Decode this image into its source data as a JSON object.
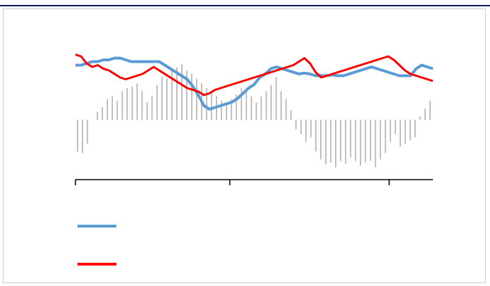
{
  "chart_data": {
    "type": "line",
    "title": "",
    "xlabel": "",
    "ylabel": "",
    "x_ticks": [
      "",
      "",
      ""
    ],
    "ylim": [
      -1,
      1
    ],
    "legend_placement": "bottom-left",
    "grid": false,
    "series": [
      {
        "color": "#5b9bd5",
        "points": [
          [
            0,
            0.62
          ],
          [
            1,
            0.62
          ],
          [
            2,
            0.64
          ],
          [
            3,
            0.66
          ],
          [
            4,
            0.66
          ],
          [
            5,
            0.68
          ],
          [
            6,
            0.68
          ],
          [
            7,
            0.7
          ],
          [
            8,
            0.7
          ],
          [
            9,
            0.68
          ],
          [
            10,
            0.66
          ],
          [
            11,
            0.66
          ],
          [
            12,
            0.66
          ],
          [
            13,
            0.66
          ],
          [
            14,
            0.66
          ],
          [
            15,
            0.66
          ],
          [
            16,
            0.62
          ],
          [
            17,
            0.58
          ],
          [
            18,
            0.54
          ],
          [
            19,
            0.5
          ],
          [
            20,
            0.46
          ],
          [
            21,
            0.38
          ],
          [
            22,
            0.28
          ],
          [
            23,
            0.16
          ],
          [
            24,
            0.12
          ],
          [
            25,
            0.14
          ],
          [
            26,
            0.16
          ],
          [
            27,
            0.18
          ],
          [
            28,
            0.2
          ],
          [
            29,
            0.24
          ],
          [
            30,
            0.3
          ],
          [
            31,
            0.36
          ],
          [
            32,
            0.4
          ],
          [
            33,
            0.48
          ],
          [
            34,
            0.52
          ],
          [
            35,
            0.58
          ],
          [
            36,
            0.6
          ],
          [
            37,
            0.58
          ],
          [
            38,
            0.56
          ],
          [
            39,
            0.54
          ],
          [
            40,
            0.52
          ],
          [
            41,
            0.53
          ],
          [
            42,
            0.52
          ],
          [
            43,
            0.5
          ],
          [
            44,
            0.5
          ],
          [
            45,
            0.5
          ],
          [
            46,
            0.51
          ],
          [
            47,
            0.5
          ],
          [
            48,
            0.5
          ],
          [
            49,
            0.52
          ],
          [
            50,
            0.54
          ],
          [
            51,
            0.56
          ],
          [
            52,
            0.58
          ],
          [
            53,
            0.6
          ],
          [
            54,
            0.58
          ],
          [
            55,
            0.56
          ],
          [
            56,
            0.54
          ],
          [
            57,
            0.52
          ],
          [
            58,
            0.5
          ],
          [
            59,
            0.5
          ],
          [
            60,
            0.5
          ],
          [
            61,
            0.58
          ],
          [
            62,
            0.62
          ],
          [
            63,
            0.6
          ],
          [
            64,
            0.58
          ]
        ]
      },
      {
        "color": "#ff0000",
        "points": [
          [
            0,
            0.74
          ],
          [
            1,
            0.72
          ],
          [
            2,
            0.64
          ],
          [
            3,
            0.6
          ],
          [
            4,
            0.62
          ],
          [
            5,
            0.58
          ],
          [
            6,
            0.56
          ],
          [
            7,
            0.52
          ],
          [
            8,
            0.48
          ],
          [
            9,
            0.46
          ],
          [
            10,
            0.48
          ],
          [
            11,
            0.5
          ],
          [
            12,
            0.52
          ],
          [
            13,
            0.56
          ],
          [
            14,
            0.6
          ],
          [
            15,
            0.56
          ],
          [
            16,
            0.52
          ],
          [
            17,
            0.48
          ],
          [
            18,
            0.44
          ],
          [
            19,
            0.4
          ],
          [
            20,
            0.36
          ],
          [
            21,
            0.34
          ],
          [
            22,
            0.32
          ],
          [
            23,
            0.28
          ],
          [
            24,
            0.3
          ],
          [
            25,
            0.34
          ],
          [
            26,
            0.36
          ],
          [
            27,
            0.38
          ],
          [
            28,
            0.4
          ],
          [
            29,
            0.42
          ],
          [
            30,
            0.44
          ],
          [
            31,
            0.46
          ],
          [
            32,
            0.48
          ],
          [
            33,
            0.5
          ],
          [
            34,
            0.52
          ],
          [
            35,
            0.54
          ],
          [
            36,
            0.56
          ],
          [
            37,
            0.58
          ],
          [
            38,
            0.6
          ],
          [
            39,
            0.62
          ],
          [
            40,
            0.66
          ],
          [
            41,
            0.7
          ],
          [
            42,
            0.64
          ],
          [
            43,
            0.54
          ],
          [
            44,
            0.48
          ],
          [
            45,
            0.5
          ],
          [
            46,
            0.52
          ],
          [
            47,
            0.54
          ],
          [
            48,
            0.56
          ],
          [
            49,
            0.58
          ],
          [
            50,
            0.6
          ],
          [
            51,
            0.62
          ],
          [
            52,
            0.64
          ],
          [
            53,
            0.66
          ],
          [
            54,
            0.68
          ],
          [
            55,
            0.7
          ],
          [
            56,
            0.72
          ],
          [
            57,
            0.68
          ],
          [
            58,
            0.62
          ],
          [
            59,
            0.56
          ],
          [
            60,
            0.52
          ],
          [
            61,
            0.5
          ],
          [
            62,
            0.48
          ],
          [
            63,
            0.46
          ],
          [
            64,
            0.44
          ]
        ]
      }
    ],
    "bars": {
      "color": "#b0b0b0",
      "values": [
        -0.4,
        -0.42,
        -0.3,
        0.0,
        0.1,
        0.16,
        0.26,
        0.3,
        0.24,
        0.36,
        0.4,
        0.42,
        0.46,
        0.36,
        0.22,
        0.3,
        0.44,
        0.54,
        0.52,
        0.62,
        0.66,
        0.7,
        0.62,
        0.58,
        0.52,
        0.46,
        0.4,
        0.34,
        0.3,
        0.24,
        0.18,
        0.26,
        0.32,
        0.4,
        0.36,
        0.3,
        0.22,
        0.3,
        0.36,
        0.44,
        0.54,
        0.36,
        0.26,
        0.12,
        -0.12,
        -0.18,
        -0.28,
        -0.22,
        -0.4,
        -0.5,
        -0.56,
        -0.54,
        -0.6,
        -0.52,
        -0.56,
        -0.48,
        -0.52,
        -0.58,
        -0.54,
        -0.52,
        -0.6,
        -0.5,
        -0.42,
        -0.28,
        -0.18,
        -0.34,
        -0.3,
        -0.26,
        -0.22,
        0.04,
        0.14,
        0.24
      ]
    }
  },
  "legend": {
    "items": [
      {
        "color": "#5b9bd5",
        "label": ""
      },
      {
        "color": "#ff0000",
        "label": ""
      }
    ]
  }
}
